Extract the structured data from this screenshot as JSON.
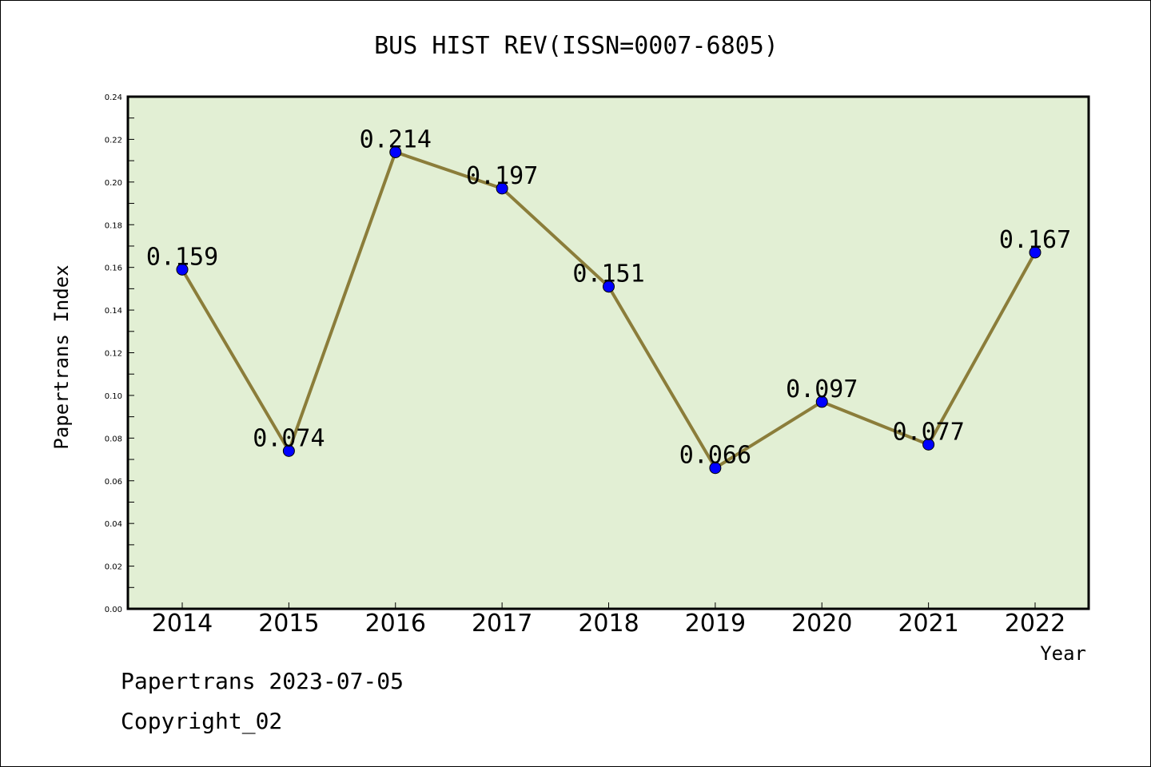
{
  "chart_data": {
    "type": "line",
    "title": "BUS HIST REV(ISSN=0007-6805)",
    "xlabel": "Year",
    "ylabel": "Papertrans Index",
    "categories": [
      "2014",
      "2015",
      "2016",
      "2017",
      "2018",
      "2019",
      "2020",
      "2021",
      "2022"
    ],
    "values": [
      0.159,
      0.074,
      0.214,
      0.197,
      0.151,
      0.066,
      0.097,
      0.077,
      0.167
    ],
    "data_labels": [
      "0.159",
      "0.074",
      "0.214",
      "0.197",
      "0.151",
      "0.066",
      "0.097",
      "0.077",
      "0.167"
    ],
    "ylim": [
      0,
      0.24
    ],
    "yticks": [
      "0.00",
      "0.02",
      "0.04",
      "0.06",
      "0.08",
      "0.10",
      "0.12",
      "0.14",
      "0.16",
      "0.18",
      "0.20",
      "0.22",
      "0.24"
    ],
    "grid": false,
    "colors": {
      "plot_bg": "#e2efd4",
      "line": "#8b7d3a",
      "marker": "#0000ff"
    }
  },
  "footer": {
    "line1": "Papertrans 2023-07-05",
    "line2": "Copyright_02"
  }
}
